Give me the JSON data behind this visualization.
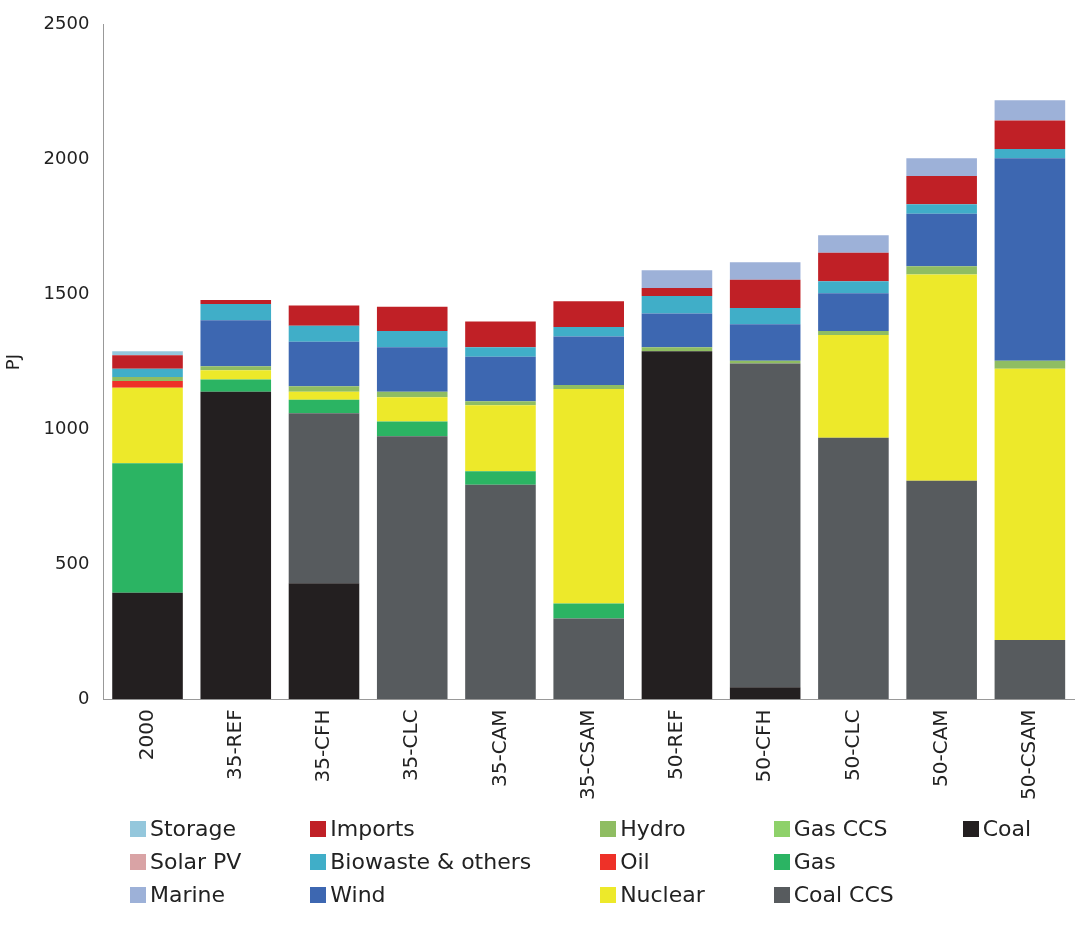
{
  "chart_data": {
    "type": "bar",
    "stacked": true,
    "ylabel": "PJ",
    "ylim": [
      0,
      2500
    ],
    "yticks": [
      0,
      500,
      1000,
      1500,
      2000,
      2500
    ],
    "grid": false,
    "legend": "bottom",
    "categories": [
      "2000",
      "35-REF",
      "35-CFH",
      "35-CLC",
      "35-CAM",
      "35-CSAM",
      "50-REF",
      "50-CFH",
      "50-CLC",
      "50-CAM",
      "50-CSAM"
    ],
    "series": [
      {
        "name": "Coal",
        "color": "#231f20",
        "values": [
          395,
          1140,
          430,
          0,
          0,
          0,
          1290,
          45,
          0,
          0,
          0
        ]
      },
      {
        "name": "Coal CCS",
        "color": "#575b5e",
        "values": [
          0,
          0,
          630,
          975,
          795,
          300,
          0,
          1200,
          970,
          810,
          220
        ]
      },
      {
        "name": "Gas",
        "color": "#2bb463",
        "values": [
          480,
          45,
          50,
          55,
          50,
          55,
          0,
          0,
          0,
          0,
          0
        ]
      },
      {
        "name": "Gas CCS",
        "color": "#8ed16a",
        "values": [
          0,
          0,
          0,
          0,
          0,
          0,
          0,
          0,
          0,
          0,
          0
        ]
      },
      {
        "name": "Nuclear",
        "color": "#ede92a",
        "values": [
          280,
          35,
          30,
          90,
          245,
          795,
          0,
          0,
          380,
          765,
          1005
        ]
      },
      {
        "name": "Oil",
        "color": "#ee3128",
        "values": [
          25,
          0,
          0,
          0,
          0,
          0,
          0,
          0,
          0,
          0,
          0
        ]
      },
      {
        "name": "Hydro",
        "color": "#8fbd62",
        "values": [
          15,
          15,
          20,
          20,
          15,
          15,
          15,
          10,
          15,
          30,
          30
        ]
      },
      {
        "name": "Wind",
        "color": "#3d67b1",
        "values": [
          0,
          170,
          165,
          165,
          165,
          180,
          125,
          135,
          140,
          195,
          750
        ]
      },
      {
        "name": "Biowaste & others",
        "color": "#40aec8",
        "values": [
          30,
          60,
          60,
          60,
          35,
          35,
          65,
          60,
          45,
          35,
          35
        ]
      },
      {
        "name": "Imports",
        "color": "#c02026",
        "values": [
          50,
          15,
          75,
          90,
          95,
          95,
          30,
          105,
          105,
          105,
          105
        ]
      },
      {
        "name": "Marine",
        "color": "#9db1d8",
        "values": [
          0,
          0,
          0,
          0,
          0,
          0,
          65,
          65,
          65,
          65,
          75
        ]
      },
      {
        "name": "Solar PV",
        "color": "#d9a3a5",
        "values": [
          0,
          0,
          0,
          0,
          0,
          0,
          0,
          0,
          0,
          0,
          0
        ]
      },
      {
        "name": "Storage",
        "color": "#94c7dc",
        "values": [
          15,
          0,
          0,
          0,
          0,
          0,
          0,
          0,
          0,
          0,
          0
        ]
      }
    ]
  }
}
